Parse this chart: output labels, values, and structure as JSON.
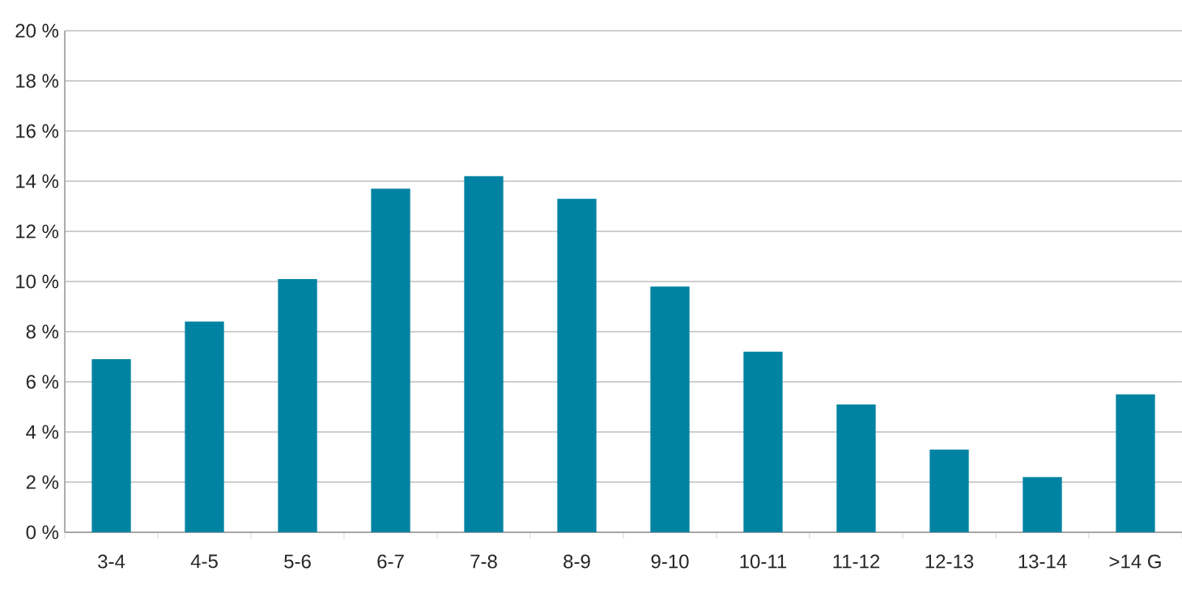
{
  "chart_data": {
    "type": "bar",
    "categories": [
      "3-4",
      "4-5",
      "5-6",
      "6-7",
      "7-8",
      "8-9",
      "9-10",
      "10-11",
      "11-12",
      "12-13",
      "13-14",
      ">14 G"
    ],
    "values": [
      6.9,
      8.4,
      10.1,
      13.7,
      14.2,
      13.3,
      9.8,
      7.2,
      5.1,
      3.3,
      2.2,
      5.5
    ],
    "color": "#0083a3",
    "ylim": [
      0,
      20
    ],
    "yticks": [
      {
        "value": 0,
        "label": "0 %"
      },
      {
        "value": 2,
        "label": "2 %"
      },
      {
        "value": 4,
        "label": "4 %"
      },
      {
        "value": 6,
        "label": "6 %"
      },
      {
        "value": 8,
        "label": "8 %"
      },
      {
        "value": 10,
        "label": "10 %"
      },
      {
        "value": 12,
        "label": "12 %"
      },
      {
        "value": 14,
        "label": "14 %"
      },
      {
        "value": 16,
        "label": "16 %"
      },
      {
        "value": 18,
        "label": "18 %"
      },
      {
        "value": 20,
        "label": "20 %"
      }
    ],
    "grid": "y"
  }
}
